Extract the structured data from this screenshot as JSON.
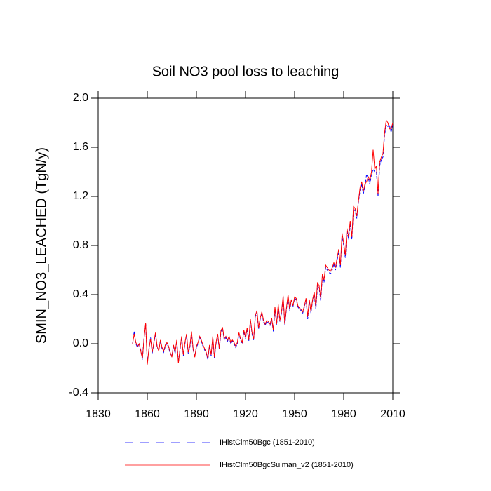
{
  "chart_data": {
    "type": "line",
    "title": "Soil NO3 pool loss to leaching",
    "y_label": "SMIN_NO3_LEACHED  (TgN/y)",
    "xlim": [
      1830,
      2010
    ],
    "xticks": [
      1830,
      1860,
      1890,
      1920,
      1950,
      1980,
      2010
    ],
    "ylim": [
      -0.4,
      2.0
    ],
    "yticks": [
      {
        "value": 2.0,
        "label": "2.0"
      },
      1.6,
      1.2,
      0.8,
      0.4,
      {
        "value": 0.0,
        "label": "0.0"
      },
      -0.4
    ],
    "x": [
      1851,
      1852,
      1853,
      1854,
      1855,
      1856,
      1857,
      1858,
      1859,
      1860,
      1861,
      1862,
      1863,
      1864,
      1865,
      1866,
      1867,
      1868,
      1869,
      1870,
      1871,
      1872,
      1873,
      1874,
      1875,
      1876,
      1877,
      1878,
      1879,
      1880,
      1881,
      1882,
      1883,
      1884,
      1885,
      1886,
      1887,
      1888,
      1889,
      1890,
      1891,
      1892,
      1893,
      1894,
      1895,
      1896,
      1897,
      1898,
      1899,
      1900,
      1901,
      1902,
      1903,
      1904,
      1905,
      1906,
      1907,
      1908,
      1909,
      1910,
      1911,
      1912,
      1913,
      1914,
      1915,
      1916,
      1917,
      1918,
      1919,
      1920,
      1921,
      1922,
      1923,
      1924,
      1925,
      1926,
      1927,
      1928,
      1929,
      1930,
      1931,
      1932,
      1933,
      1934,
      1935,
      1936,
      1937,
      1938,
      1939,
      1940,
      1941,
      1942,
      1943,
      1944,
      1945,
      1946,
      1947,
      1948,
      1949,
      1950,
      1951,
      1952,
      1953,
      1954,
      1955,
      1956,
      1957,
      1958,
      1959,
      1960,
      1961,
      1962,
      1963,
      1964,
      1965,
      1966,
      1967,
      1968,
      1969,
      1970,
      1971,
      1972,
      1973,
      1974,
      1975,
      1976,
      1977,
      1978,
      1979,
      1980,
      1981,
      1982,
      1983,
      1984,
      1985,
      1986,
      1987,
      1988,
      1989,
      1990,
      1991,
      1992,
      1993,
      1994,
      1995,
      1996,
      1997,
      1998,
      1999,
      2000,
      2001,
      2002,
      2003,
      2004,
      2005,
      2006,
      2007,
      2008,
      2009,
      2010
    ],
    "series": [
      {
        "name": "IHistClm50Bgc (1851-2010)",
        "color": "#0000ff",
        "dashed": true,
        "values": [
          0.0,
          0.1,
          0.0,
          -0.03,
          0.0,
          -0.05,
          -0.13,
          0.05,
          0.16,
          -0.15,
          -0.05,
          0.05,
          -0.08,
          0.0,
          0.08,
          -0.03,
          -0.05,
          0.02,
          -0.04,
          -0.07,
          -0.02,
          0.0,
          -0.03,
          -0.08,
          -0.1,
          -0.02,
          -0.08,
          0.02,
          -0.15,
          -0.05,
          0.05,
          -0.1,
          0.0,
          0.07,
          -0.08,
          -0.03,
          0.08,
          -0.05,
          -0.1,
          -0.03,
          0.0,
          0.05,
          0.02,
          -0.02,
          -0.05,
          -0.08,
          -0.13,
          -0.02,
          -0.1,
          0.05,
          -0.12,
          0.0,
          0.07,
          -0.05,
          0.1,
          0.12,
          0.03,
          0.05,
          0.02,
          0.05,
          0.0,
          0.02,
          0.0,
          -0.03,
          0.0,
          0.08,
          0.03,
          0.0,
          0.1,
          0.04,
          0.12,
          0.02,
          0.19,
          0.08,
          0.03,
          0.22,
          0.25,
          0.12,
          0.2,
          0.25,
          0.18,
          0.15,
          0.18,
          0.17,
          0.15,
          0.2,
          0.1,
          0.28,
          0.15,
          0.3,
          0.18,
          0.25,
          0.38,
          0.15,
          0.28,
          0.38,
          0.27,
          0.35,
          0.3,
          0.37,
          0.36,
          0.3,
          0.28,
          0.27,
          0.25,
          0.3,
          0.36,
          0.2,
          0.35,
          0.25,
          0.35,
          0.4,
          0.28,
          0.47,
          0.45,
          0.35,
          0.55,
          0.5,
          0.62,
          0.6,
          0.58,
          0.57,
          0.6,
          0.65,
          0.6,
          0.68,
          0.75,
          0.62,
          0.88,
          0.8,
          0.7,
          0.92,
          0.85,
          0.98,
          0.85,
          1.1,
          1.08,
          1.02,
          1.15,
          1.25,
          1.3,
          1.22,
          1.28,
          1.38,
          1.35,
          1.3,
          1.38,
          1.42,
          1.4,
          1.4,
          1.2,
          1.45,
          1.5,
          1.52,
          1.7,
          1.78,
          1.77,
          1.78,
          1.72,
          1.8
        ]
      },
      {
        "name": "IHistClm50BgcSulman_v2 (1851-2010)",
        "color": "#ff0000",
        "dashed": false,
        "values": [
          0.0,
          0.08,
          0.01,
          -0.02,
          0.0,
          -0.06,
          -0.12,
          0.04,
          0.17,
          -0.17,
          -0.04,
          0.04,
          -0.07,
          0.01,
          0.09,
          -0.02,
          -0.06,
          0.03,
          -0.03,
          -0.06,
          -0.01,
          0.01,
          -0.02,
          -0.07,
          -0.11,
          -0.01,
          -0.07,
          0.03,
          -0.16,
          -0.04,
          0.06,
          -0.09,
          0.01,
          0.08,
          -0.07,
          -0.02,
          0.1,
          -0.04,
          -0.11,
          -0.02,
          0.01,
          0.06,
          0.03,
          -0.01,
          -0.04,
          -0.07,
          -0.12,
          -0.01,
          -0.09,
          0.06,
          -0.11,
          0.01,
          0.08,
          -0.04,
          0.11,
          0.13,
          0.04,
          0.06,
          0.03,
          0.06,
          0.01,
          0.03,
          0.01,
          -0.02,
          0.01,
          0.09,
          0.04,
          0.01,
          0.11,
          0.05,
          0.13,
          0.03,
          0.2,
          0.09,
          0.04,
          0.23,
          0.27,
          0.13,
          0.21,
          0.26,
          0.19,
          0.16,
          0.19,
          0.18,
          0.16,
          0.21,
          0.11,
          0.3,
          0.16,
          0.32,
          0.19,
          0.26,
          0.39,
          0.16,
          0.29,
          0.4,
          0.28,
          0.36,
          0.31,
          0.38,
          0.37,
          0.31,
          0.29,
          0.28,
          0.26,
          0.31,
          0.37,
          0.22,
          0.36,
          0.26,
          0.36,
          0.42,
          0.3,
          0.5,
          0.47,
          0.37,
          0.57,
          0.52,
          0.64,
          0.62,
          0.6,
          0.59,
          0.62,
          0.66,
          0.62,
          0.7,
          0.77,
          0.64,
          0.9,
          0.82,
          0.72,
          0.94,
          0.87,
          1.0,
          0.87,
          1.12,
          1.1,
          1.04,
          1.16,
          1.27,
          1.32,
          1.24,
          1.3,
          1.32,
          1.36,
          1.33,
          1.4,
          1.58,
          1.42,
          1.45,
          1.22,
          1.48,
          1.52,
          1.55,
          1.72,
          1.82,
          1.8,
          1.75,
          1.75,
          1.8
        ]
      }
    ]
  }
}
